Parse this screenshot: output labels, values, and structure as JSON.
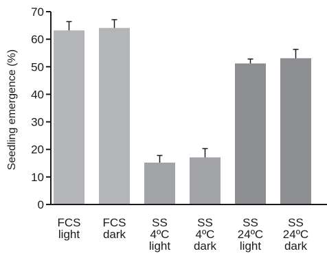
{
  "chart_data": {
    "type": "bar",
    "title": "",
    "xlabel": "",
    "ylabel": "Seedling emergence (%)",
    "ylim": [
      0,
      70
    ],
    "yticks": [
      0,
      10,
      20,
      30,
      40,
      50,
      60,
      70
    ],
    "grid": false,
    "categories": [
      [
        "FCS",
        "light"
      ],
      [
        "FCS",
        "dark"
      ],
      [
        "SS",
        "4ºC",
        "light"
      ],
      [
        "SS",
        "4ºC",
        "dark"
      ],
      [
        "SS",
        "24ºC",
        "light"
      ],
      [
        "SS",
        "24ºC",
        "dark"
      ]
    ],
    "values": [
      63.2,
      64.1,
      15.2,
      17.1,
      51.2,
      53.1
    ],
    "error_plus": [
      3.2,
      3.0,
      2.6,
      3.2,
      1.6,
      3.2
    ],
    "bar_colors": [
      "#b4b5b8",
      "#b4b5b8",
      "#a2a4a7",
      "#a2a4a7",
      "#8c8e91",
      "#8c8e91"
    ]
  }
}
